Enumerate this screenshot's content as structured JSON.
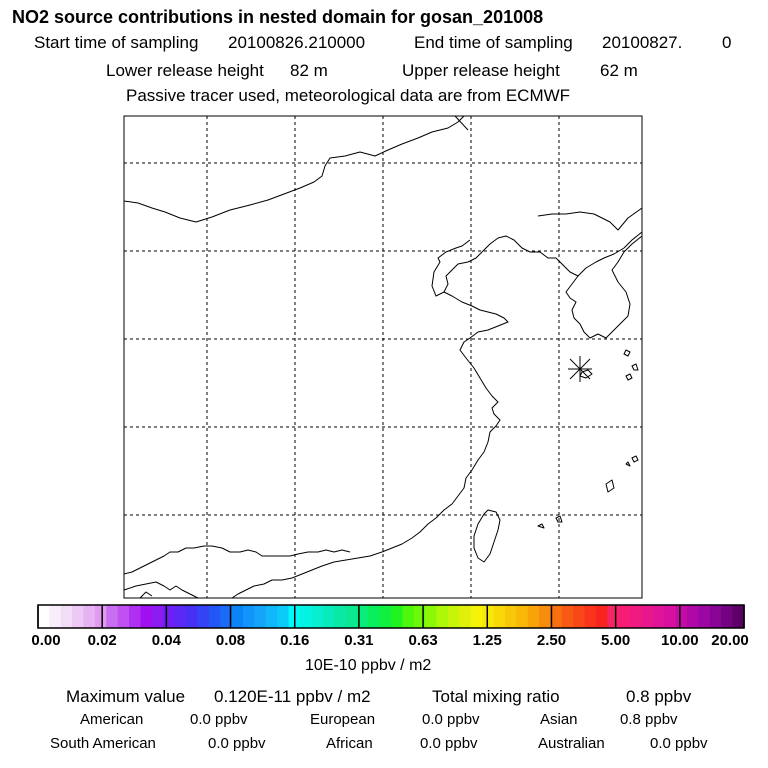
{
  "header": {
    "title": "NO2 source contributions in nested domain for gosan_201008",
    "start_label": "Start time of sampling",
    "start_value": "20100826.210000",
    "end_label": "End time of sampling",
    "end_value": "20100827.",
    "end_suffix": "0",
    "lower_label": "Lower release height",
    "lower_value": "82 m",
    "upper_label": "Upper release height",
    "upper_value": "62 m",
    "tracer_note": "Passive tracer used, meteorological data are from ECMWF"
  },
  "map": {
    "region": "East China, Korea, Japan (southern), Taiwan",
    "receptor_marker": "gosan-receptor-asterisk"
  },
  "colorbar": {
    "unit_label": "10E-10 ppbv / m2",
    "tick_labels": [
      "0.00",
      "0.02",
      "0.04",
      "0.08",
      "0.16",
      "0.31",
      "0.63",
      "1.25",
      "2.50",
      "5.00",
      "10.00",
      "20.00"
    ],
    "colors": [
      "#ffffff",
      "#f8eefb",
      "#f2dcf7",
      "#ecc8f4",
      "#e6b2f2",
      "#e09af0",
      "#c86ef0",
      "#c050f2",
      "#b030f2",
      "#a010f0",
      "#8c1cf2",
      "#7020f4",
      "#5c28f4",
      "#4630f4",
      "#3444f4",
      "#2256f6",
      "#1a6cf6",
      "#0c84f8",
      "#1096fa",
      "#14a4fa",
      "#10b8fa",
      "#0ccaf8",
      "#00f8f8",
      "#04f4e4",
      "#06f0d0",
      "#08ecbc",
      "#0ae8a6",
      "#0ae890",
      "#08ec78",
      "#08ee5c",
      "#10f040",
      "#20f420",
      "#4cf80c",
      "#6cf808",
      "#8cf808",
      "#acf808",
      "#c8f40a",
      "#e0f00a",
      "#f4f408",
      "#f8e808",
      "#f8d808",
      "#f8c808",
      "#f8b808",
      "#f8a408",
      "#f88c0c",
      "#f87010",
      "#f85a14",
      "#f84818",
      "#f8341a",
      "#f82420",
      "#f82468",
      "#f81c74",
      "#f01a80",
      "#e8188c",
      "#e01498",
      "#d810a0",
      "#c40ca4",
      "#b008a6",
      "#9c06a4",
      "#880494",
      "#720280",
      "#5c0068"
    ]
  },
  "summary": {
    "max_label": "Maximum value",
    "max_value": "0.120E-11 ppbv / m2",
    "total_label": "Total mixing ratio",
    "total_value": "0.8 ppbv",
    "sources": [
      {
        "name": "American",
        "value": "0.0 ppbv"
      },
      {
        "name": "European",
        "value": "0.0 ppbv"
      },
      {
        "name": "Asian",
        "value": "0.8 ppbv"
      },
      {
        "name": "South American",
        "value": "0.0 ppbv"
      },
      {
        "name": "African",
        "value": "0.0 ppbv"
      },
      {
        "name": "Australian",
        "value": "0.0 ppbv"
      }
    ]
  }
}
